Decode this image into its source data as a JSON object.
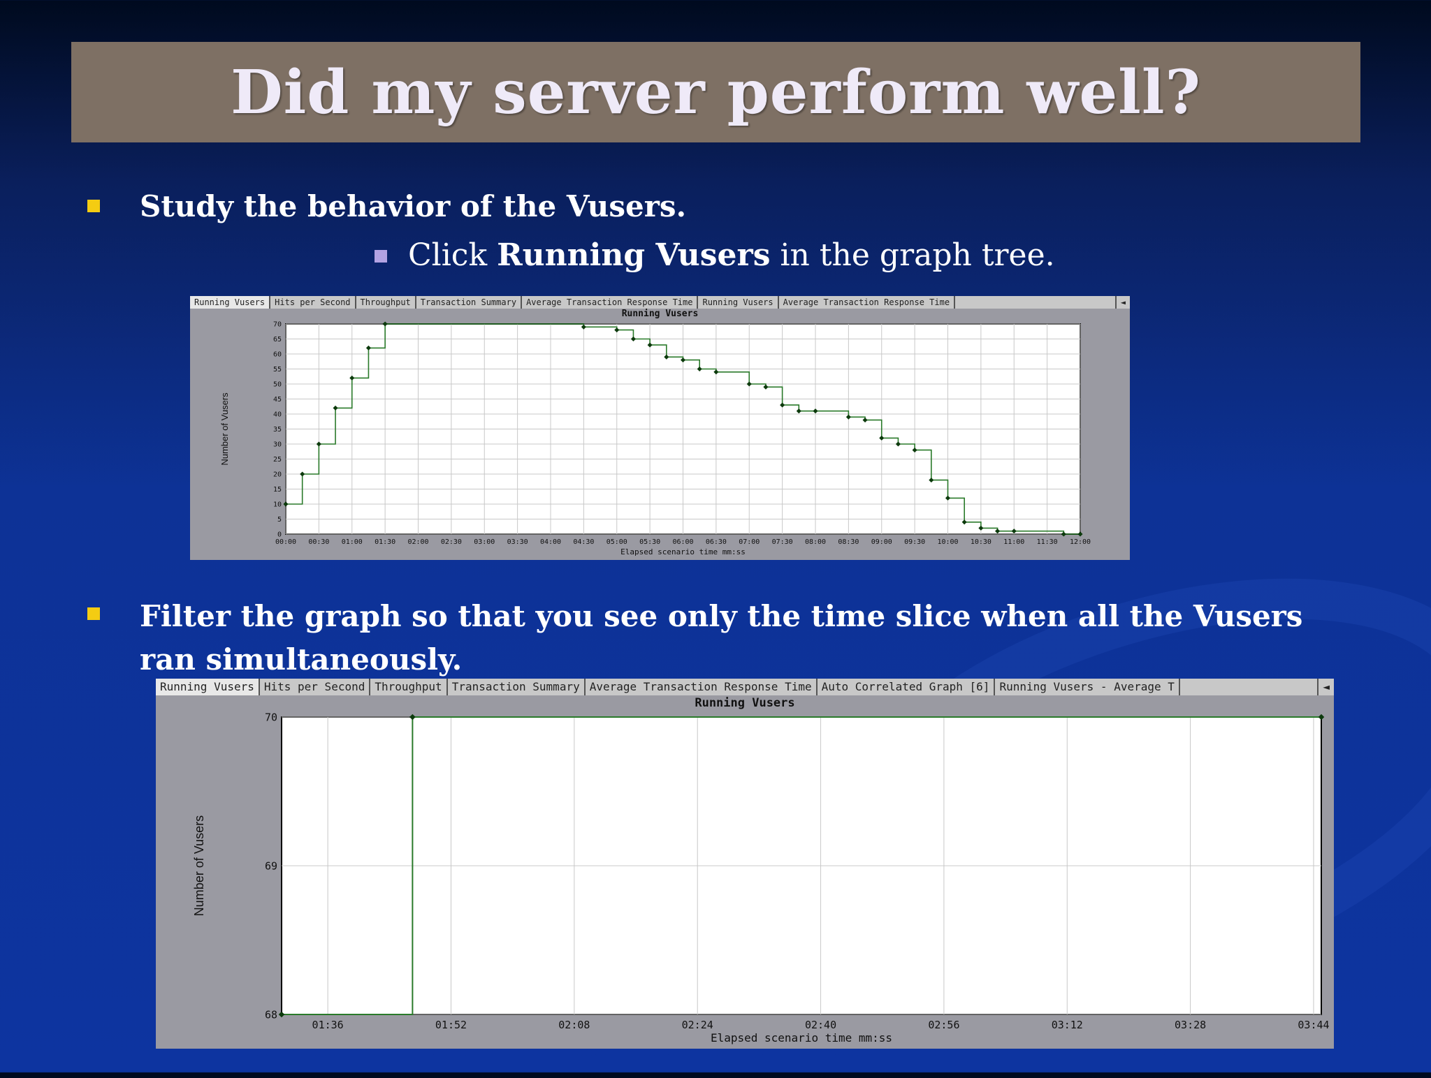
{
  "slide": {
    "title": "Did my server perform well?",
    "bullet1": "Study the behavior of the Vusers.",
    "sub_before": "Click ",
    "sub_bold": "Running Vusers",
    "sub_after": " in the graph tree.",
    "bullet2": "Filter the graph so that you see only the time slice when all the Vusers ran simultaneously."
  },
  "graph1": {
    "tabs": [
      "Running Vusers",
      "Hits per Second",
      "Throughput",
      "Transaction Summary",
      "Average Transaction Response Time",
      "Running Vusers",
      "Average Transaction Response Time"
    ],
    "scroll_icon": "left-arrow-icon",
    "title": "Running Vusers",
    "xlabel": "Elapsed scenario time mm:ss",
    "ylabel": "Number of Vusers"
  },
  "graph2": {
    "tabs": [
      "Running Vusers",
      "Hits per Second",
      "Throughput",
      "Transaction Summary",
      "Average Transaction Response Time",
      "Auto Correlated Graph [6]",
      "Running Vusers - Average T"
    ],
    "scroll_icon": "left-arrow-icon",
    "title": "Running Vusers",
    "xlabel": "Elapsed scenario time mm:ss",
    "ylabel": "Number of Vusers"
  },
  "chart_data": [
    {
      "type": "line",
      "step": true,
      "title": "Running Vusers",
      "xlabel": "Elapsed scenario time mm:ss",
      "ylabel": "Number of Vusers",
      "x_ticks": [
        "00:00",
        "00:30",
        "01:00",
        "01:30",
        "02:00",
        "02:30",
        "03:00",
        "03:30",
        "04:00",
        "04:30",
        "05:00",
        "05:30",
        "06:00",
        "06:30",
        "07:00",
        "07:30",
        "08:00",
        "08:30",
        "09:00",
        "09:30",
        "10:00",
        "10:30",
        "11:00",
        "11:30",
        "12:00"
      ],
      "y_ticks": [
        0,
        5,
        10,
        15,
        20,
        25,
        30,
        35,
        40,
        45,
        50,
        55,
        60,
        65,
        70
      ],
      "xlim": [
        "00:00",
        "12:00"
      ],
      "ylim": [
        0,
        70
      ],
      "grid": true,
      "series": [
        {
          "x": [
            "00:00",
            "00:15",
            "00:30",
            "00:45",
            "01:00",
            "01:15",
            "01:30",
            "04:30",
            "05:00",
            "05:15",
            "05:30",
            "05:45",
            "06:00",
            "06:15",
            "06:30",
            "07:00",
            "07:15",
            "07:30",
            "07:45",
            "08:00",
            "08:30",
            "08:45",
            "09:00",
            "09:15",
            "09:30",
            "09:45",
            "10:00",
            "10:15",
            "10:30",
            "10:45",
            "11:00",
            "11:45",
            "12:00"
          ],
          "y": [
            10,
            20,
            30,
            42,
            52,
            62,
            70,
            69,
            68,
            65,
            63,
            59,
            58,
            55,
            54,
            50,
            49,
            43,
            41,
            41,
            39,
            38,
            32,
            30,
            28,
            18,
            12,
            4,
            2,
            1,
            1,
            0,
            0
          ]
        }
      ]
    },
    {
      "type": "line",
      "step": true,
      "title": "Running Vusers",
      "xlabel": "Elapsed scenario time mm:ss",
      "ylabel": "Number of Vusers",
      "x_ticks": [
        "01:36",
        "01:52",
        "02:08",
        "02:24",
        "02:40",
        "02:56",
        "03:12",
        "03:28",
        "03:44"
      ],
      "y_ticks": [
        68,
        69,
        70
      ],
      "xlim": [
        "01:30",
        "03:45"
      ],
      "ylim": [
        68,
        70
      ],
      "grid": true,
      "series": [
        {
          "x": [
            "01:30",
            "01:47",
            "03:45"
          ],
          "y": [
            68,
            70,
            70
          ]
        }
      ]
    }
  ]
}
